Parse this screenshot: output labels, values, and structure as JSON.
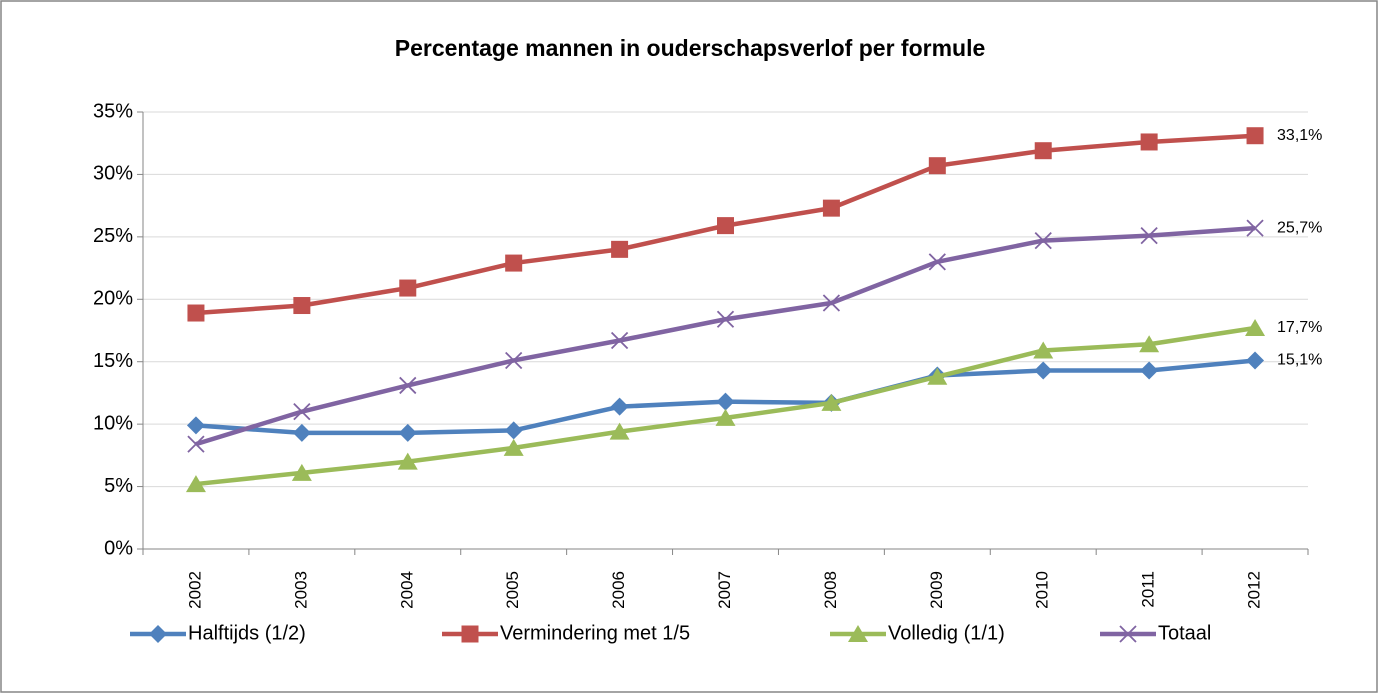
{
  "chart_data": {
    "type": "line",
    "title": "Percentage mannen in ouderschapsverlof per formule",
    "categories": [
      "2002",
      "2003",
      "2004",
      "2005",
      "2006",
      "2007",
      "2008",
      "2009",
      "2010",
      "2011",
      "2012"
    ],
    "series": [
      {
        "name": "Halftijds (1/2)",
        "color": "#4f81bd",
        "marker": "diamond",
        "values": [
          9.9,
          9.3,
          9.3,
          9.5,
          11.4,
          11.8,
          11.7,
          13.9,
          14.3,
          14.3,
          15.1
        ],
        "value_labels": [
          null,
          null,
          null,
          null,
          null,
          null,
          null,
          null,
          null,
          null,
          "15,1%"
        ]
      },
      {
        "name": "Vermindering met 1/5",
        "color": "#c0504d",
        "marker": "square",
        "values": [
          18.9,
          19.5,
          20.9,
          22.9,
          24.0,
          25.9,
          27.3,
          30.7,
          31.9,
          32.6,
          33.1
        ],
        "value_labels": [
          null,
          null,
          null,
          null,
          null,
          null,
          null,
          null,
          null,
          null,
          "33,1%"
        ]
      },
      {
        "name": "Volledig (1/1)",
        "color": "#9bbb59",
        "marker": "triangle",
        "values": [
          5.2,
          6.1,
          7.0,
          8.1,
          9.4,
          10.5,
          11.7,
          13.8,
          15.9,
          16.4,
          17.7
        ],
        "value_labels": [
          null,
          null,
          null,
          null,
          null,
          null,
          null,
          null,
          null,
          null,
          "17,7%"
        ]
      },
      {
        "name": "Totaal",
        "color": "#8064a2",
        "marker": "x",
        "values": [
          8.4,
          11.0,
          13.1,
          15.1,
          16.7,
          18.4,
          19.7,
          23.0,
          24.7,
          25.1,
          25.7
        ],
        "value_labels": [
          null,
          null,
          null,
          null,
          null,
          null,
          null,
          null,
          null,
          null,
          "25,7%"
        ]
      }
    ],
    "ylim": [
      0,
      35
    ],
    "yticks": [
      {
        "value": 0,
        "label": "0%"
      },
      {
        "value": 5,
        "label": "5%"
      },
      {
        "value": 10,
        "label": "10%"
      },
      {
        "value": 15,
        "label": "15%"
      },
      {
        "value": 20,
        "label": "20%"
      },
      {
        "value": 25,
        "label": "25%"
      },
      {
        "value": 30,
        "label": "30%"
      },
      {
        "value": 35,
        "label": "35%"
      }
    ],
    "grid": true,
    "legend": "bottom"
  }
}
